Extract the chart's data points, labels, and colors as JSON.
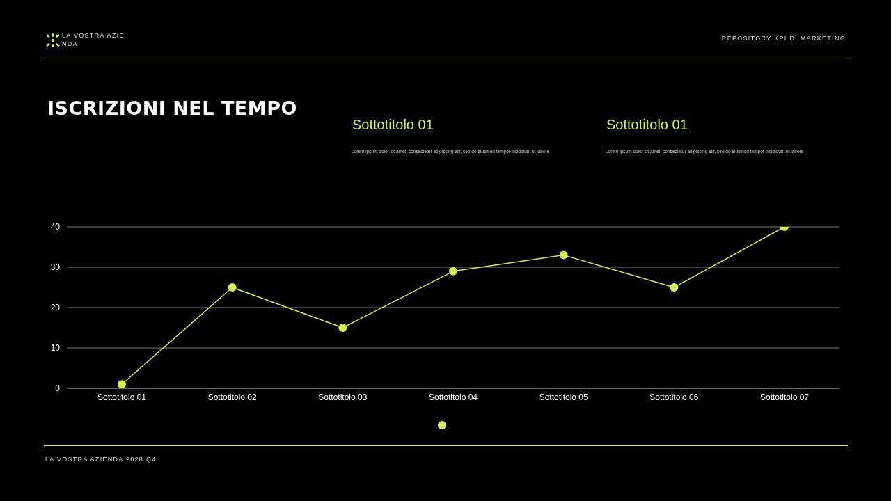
{
  "chart_data": {
    "type": "line",
    "title": "ISCRIZIONI NEL TEMPO",
    "annotations": [
      "LA VOSTRA AZIENDA",
      "REPOSITORY KPI DI MARKETING",
      "Sottotitolo 01",
      "Lorem ipsum dolor sit amet, consectetur adipiscing elit, sed do eiusmod tempor incididunt ut labore",
      "Sottotitolo 01",
      "Lorem ipsum dolor sit amet, consectetur adipiscing elit, sed do eiusmod tempor incididunt ut labore",
      "LA VOSTRA AZIENDA 2028 Q4"
    ],
    "categories": [
      "Sottotitolo 01",
      "Sottotitolo 02",
      "Sottotitolo 03",
      "Sottotitolo 04",
      "Sottotitolo 05",
      "Sottotitolo 06",
      "Sottotitolo 07"
    ],
    "series": [
      {
        "color": "#d4f04a",
        "values": [
          1,
          25,
          15,
          29,
          33,
          25,
          40
        ]
      }
    ],
    "ylim": [
      0,
      40
    ],
    "yticks": [
      0,
      10,
      20,
      30,
      40
    ],
    "grid": "y",
    "marker": "circle",
    "line_style": "solid"
  }
}
